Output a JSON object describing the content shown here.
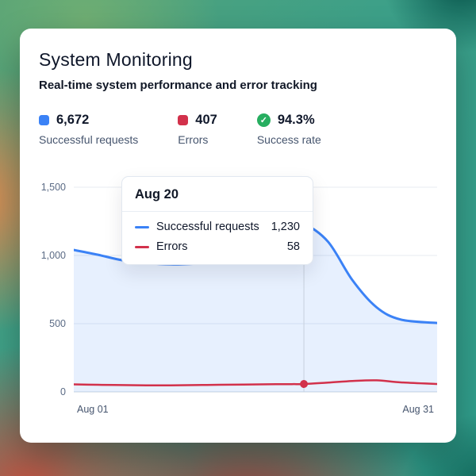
{
  "header": {
    "title": "System Monitoring",
    "subtitle": "Real-time system performance and error tracking"
  },
  "stats": [
    {
      "value": "6,672",
      "label": "Successful requests",
      "color": "#3b82f6"
    },
    {
      "value": "407",
      "label": "Errors",
      "color": "#d2314b"
    },
    {
      "value": "94.3%",
      "label": "Success rate",
      "color": "#27ae60",
      "glyph": "✓"
    }
  ],
  "tooltip": {
    "title": "Aug 20",
    "rows": [
      {
        "label": "Successful requests",
        "value": "1,230",
        "color": "#3b82f6"
      },
      {
        "label": "Errors",
        "value": "58",
        "color": "#d2314b"
      }
    ]
  },
  "chart_data": {
    "type": "line",
    "title": "System Monitoring",
    "xlabel": "",
    "ylabel": "",
    "x": [
      1,
      3,
      5,
      7,
      9,
      11,
      13,
      15,
      17,
      19,
      20,
      22,
      24,
      26,
      28,
      31
    ],
    "xlim": [
      1,
      31
    ],
    "ylim": [
      0,
      1500
    ],
    "series": [
      {
        "name": "Successful requests",
        "color": "#3b82f6",
        "area": true,
        "values": [
          1040,
          1005,
          965,
          945,
          935,
          940,
          955,
          1000,
          1090,
          1195,
          1230,
          1100,
          820,
          620,
          530,
          505
        ]
      },
      {
        "name": "Errors",
        "color": "#d2314b",
        "area": false,
        "values": [
          55,
          52,
          50,
          48,
          48,
          50,
          52,
          54,
          56,
          57,
          58,
          68,
          80,
          85,
          70,
          58
        ]
      }
    ],
    "yticks": [
      {
        "v": 0,
        "label": "0"
      },
      {
        "v": 500,
        "label": "500"
      },
      {
        "v": 1000,
        "label": "1,000"
      },
      {
        "v": 1500,
        "label": "1,500"
      }
    ],
    "xticklabels": [
      "Aug 01",
      "Aug 31"
    ],
    "marker": {
      "x": 20,
      "label": "Aug 20",
      "values": [
        1230,
        58
      ]
    },
    "grid": true,
    "legend": false
  }
}
